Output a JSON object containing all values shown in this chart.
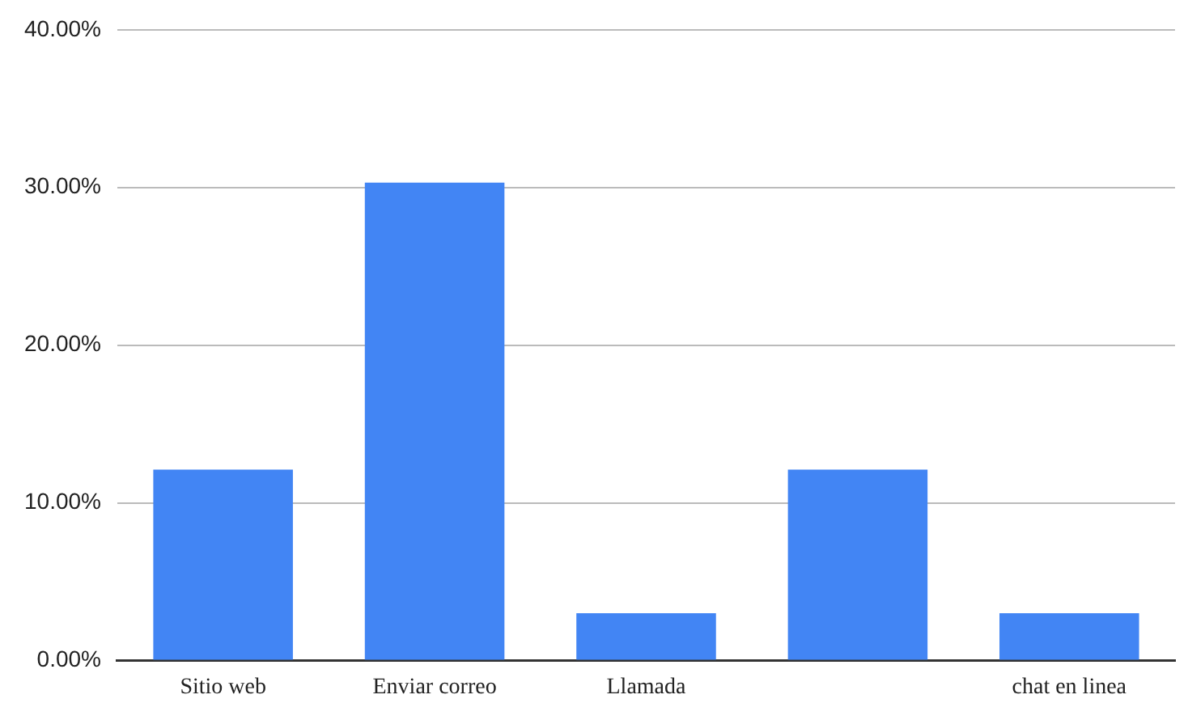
{
  "chart_data": {
    "type": "bar",
    "categories": [
      "Sitio web",
      "Enviar correo",
      "Llamada",
      null,
      "chat en linea"
    ],
    "values": [
      12.1,
      30.3,
      3,
      12.1,
      3
    ],
    "color": "#4285f4",
    "ylim": [
      0,
      40
    ],
    "yticks": [
      {
        "value": 0,
        "label": "0.00%"
      },
      {
        "value": 10,
        "label": "10.00%"
      },
      {
        "value": 20,
        "label": "20.00%"
      },
      {
        "value": 30,
        "label": "30.00%"
      },
      {
        "value": 40,
        "label": "40.00%"
      }
    ],
    "grid": "y",
    "legend": false
  }
}
